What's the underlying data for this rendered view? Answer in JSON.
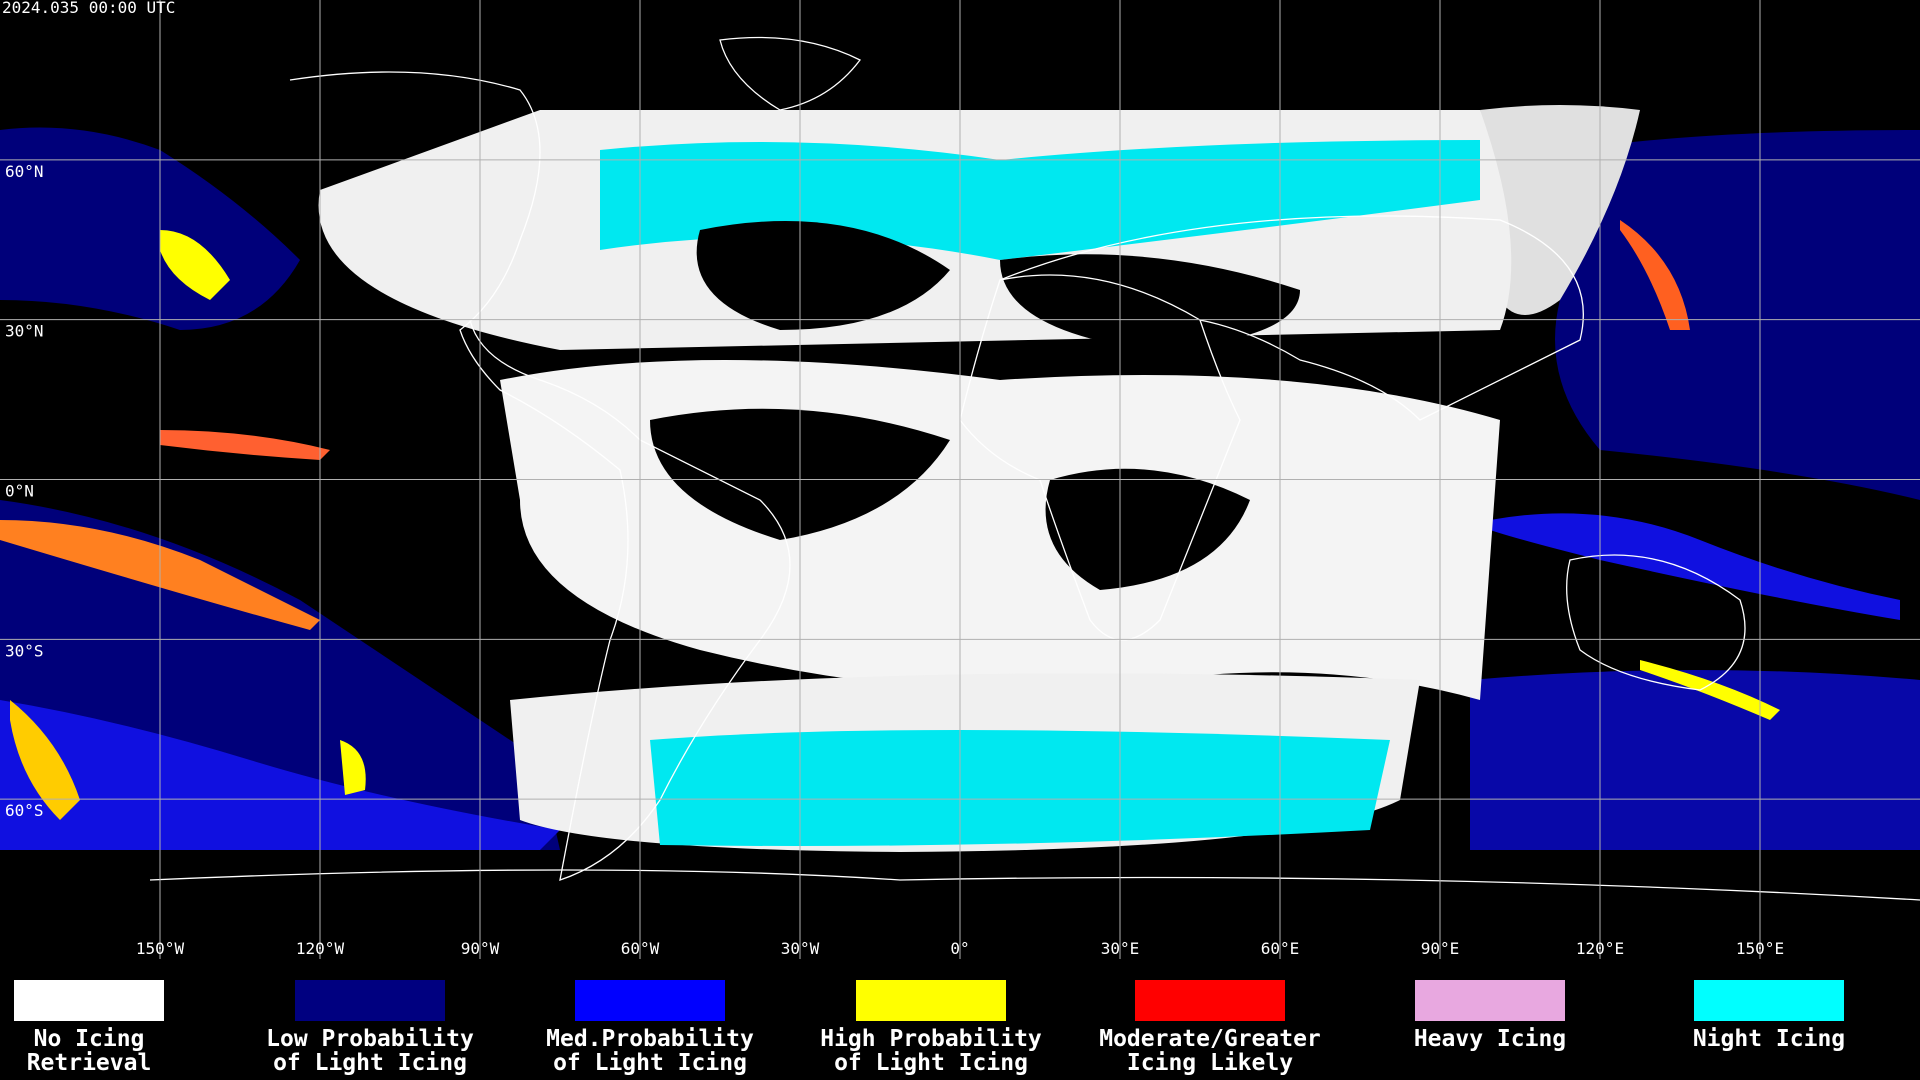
{
  "header": {
    "timestamp": "2024.035 00:00 UTC"
  },
  "map": {
    "lat_ticks": [
      {
        "value": 60,
        "label": "60°N"
      },
      {
        "value": 30,
        "label": "30°N"
      },
      {
        "value": 0,
        "label": "0°N"
      },
      {
        "value": -30,
        "label": "30°S"
      },
      {
        "value": -60,
        "label": "60°S"
      }
    ],
    "lon_ticks": [
      {
        "value": -150,
        "label": "150°W"
      },
      {
        "value": -120,
        "label": "120°W"
      },
      {
        "value": -90,
        "label": "90°W"
      },
      {
        "value": -60,
        "label": "60°W"
      },
      {
        "value": -30,
        "label": "30°W"
      },
      {
        "value": 0,
        "label": "0°"
      },
      {
        "value": 30,
        "label": "30°E"
      },
      {
        "value": 60,
        "label": "60°E"
      },
      {
        "value": 90,
        "label": "90°E"
      },
      {
        "value": 120,
        "label": "120°E"
      },
      {
        "value": 150,
        "label": "150°E"
      }
    ],
    "grid_color": "#b0b0b0"
  },
  "legend": {
    "items": [
      {
        "lines": [
          "No Icing",
          "Retrieval"
        ],
        "color": "#ffffff"
      },
      {
        "lines": [
          "Low Probability",
          "of Light Icing"
        ],
        "color": "#000080"
      },
      {
        "lines": [
          "Med.Probability",
          "of Light Icing"
        ],
        "color": "#0000ff"
      },
      {
        "lines": [
          "High Probability",
          "of Light Icing"
        ],
        "color": "#ffff00"
      },
      {
        "lines": [
          "Moderate/Greater",
          "Icing Likely"
        ],
        "color": "#ff0000"
      },
      {
        "lines": [
          "Heavy Icing"
        ],
        "color": "#e8a8e0"
      },
      {
        "lines": [
          "Night Icing"
        ],
        "color": "#00ffff"
      }
    ]
  }
}
